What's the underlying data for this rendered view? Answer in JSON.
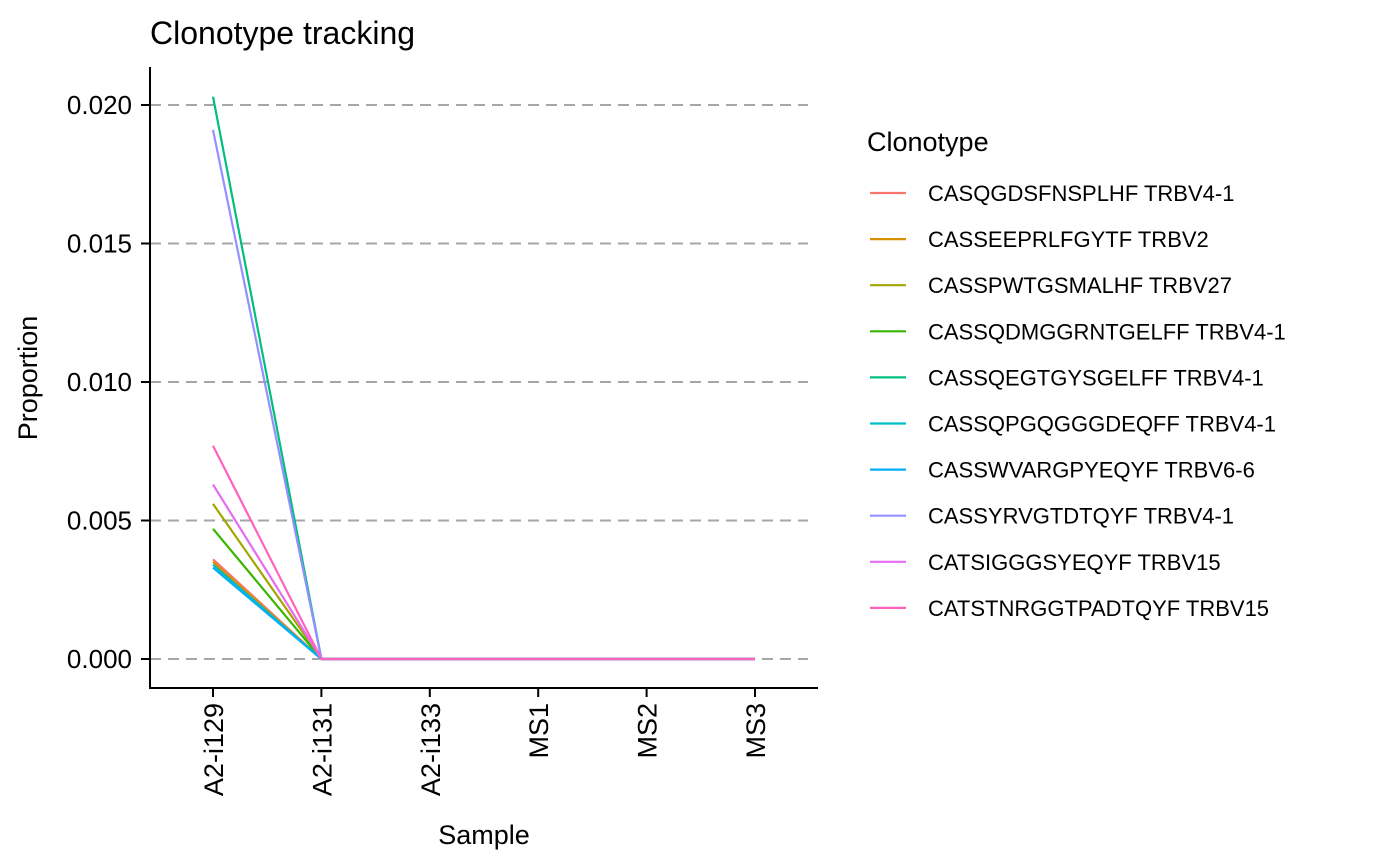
{
  "chart_data": {
    "type": "line",
    "title": "Clonotype tracking",
    "xlabel": "Sample",
    "ylabel": "Proportion",
    "categories": [
      "A2-i129",
      "A2-i131",
      "A2-i133",
      "MS1",
      "MS2",
      "MS3"
    ],
    "ylim": [
      -0.001,
      0.0214
    ],
    "yticks": [
      0.0,
      0.005,
      0.01,
      0.015,
      0.02
    ],
    "ytick_labels": [
      "0.000",
      "0.005",
      "0.010",
      "0.015",
      "0.020"
    ],
    "grid": "horizontal dashed",
    "legend_title": "Clonotype",
    "legend_position": "right",
    "series": [
      {
        "name": "CASQGDSFNSPLHF TRBV4-1",
        "color": "#F8766D",
        "values": [
          0.0036,
          0,
          0,
          0,
          0,
          0
        ]
      },
      {
        "name": "CASSEEPRLFGYTF TRBV2",
        "color": "#D89000",
        "values": [
          0.0035,
          0,
          0,
          0,
          0,
          0
        ]
      },
      {
        "name": "CASSPWTGSMALHF TRBV27",
        "color": "#A3A500",
        "values": [
          0.0056,
          0,
          0,
          0,
          0,
          0
        ]
      },
      {
        "name": "CASSQDMGGRNTGELFF TRBV4-1",
        "color": "#39B600",
        "values": [
          0.0047,
          0,
          0,
          0,
          0,
          0
        ]
      },
      {
        "name": "CASSQEGTGYSGELFF TRBV4-1",
        "color": "#00BF7D",
        "values": [
          0.0203,
          0,
          0,
          0,
          0,
          0
        ]
      },
      {
        "name": "CASSQPGQGGGDEQFF TRBV4-1",
        "color": "#00BFC4",
        "values": [
          0.0034,
          0,
          0,
          0,
          0,
          0
        ]
      },
      {
        "name": "CASSWVARGPYEQYF TRBV6-6",
        "color": "#00B0F6",
        "values": [
          0.0033,
          0,
          0,
          0,
          0,
          0
        ]
      },
      {
        "name": "CASSYRVGTDTQYF TRBV4-1",
        "color": "#9590FF",
        "values": [
          0.0191,
          0,
          0,
          0,
          0,
          0
        ]
      },
      {
        "name": "CATSIGGGSYEQYF TRBV15",
        "color": "#E76BF3",
        "values": [
          0.0063,
          0,
          0,
          0,
          0,
          0
        ]
      },
      {
        "name": "CATSTNRGGTPADTQYF TRBV15",
        "color": "#FF62BC",
        "values": [
          0.0077,
          0,
          0,
          0,
          0,
          0
        ]
      }
    ]
  }
}
